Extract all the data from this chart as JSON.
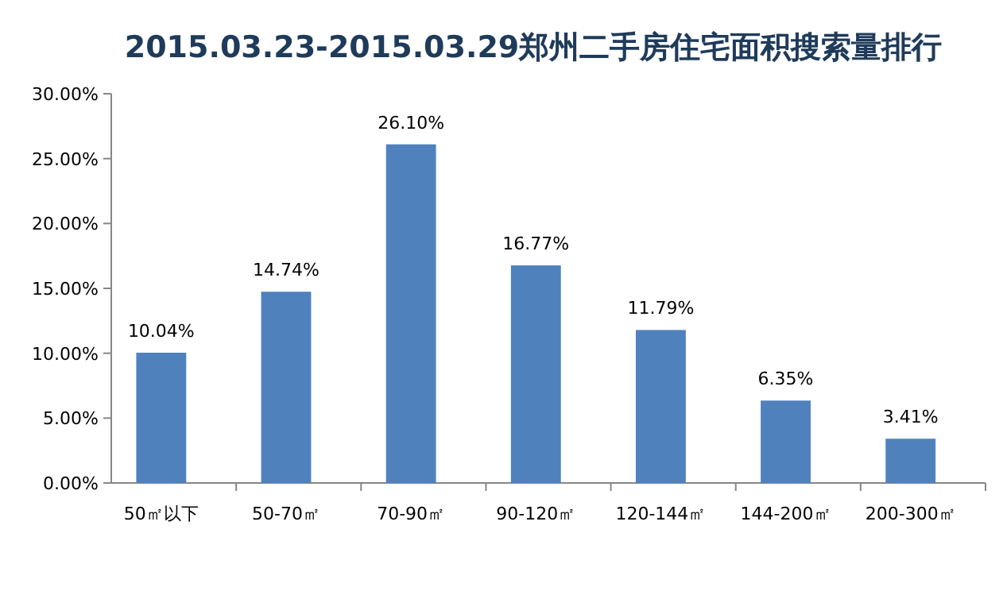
{
  "chart_data": {
    "type": "bar",
    "title": "2015.03.23-2015.03.29郑州二手房住宅面积搜索量排行",
    "categories": [
      "50㎡以下",
      "50-70㎡",
      "70-90㎡",
      "90-120㎡",
      "120-144㎡",
      "144-200㎡",
      "200-300㎡"
    ],
    "values": [
      10.04,
      14.74,
      26.1,
      16.77,
      11.79,
      6.35,
      3.41
    ],
    "value_labels": [
      "10.04%",
      "14.74%",
      "26.10%",
      "16.77%",
      "11.79%",
      "6.35%",
      "3.41%"
    ],
    "color": "#4f81bd",
    "ylim": [
      0,
      30
    ],
    "yticks": [
      {
        "value": 0,
        "label": "0.00%"
      },
      {
        "value": 5,
        "label": "5.00%"
      },
      {
        "value": 10,
        "label": "10.00%"
      },
      {
        "value": 15,
        "label": "15.00%"
      },
      {
        "value": 20,
        "label": "20.00%"
      },
      {
        "value": 25,
        "label": "25.00%"
      },
      {
        "value": 30,
        "label": "30.00%"
      }
    ],
    "grid": false
  }
}
